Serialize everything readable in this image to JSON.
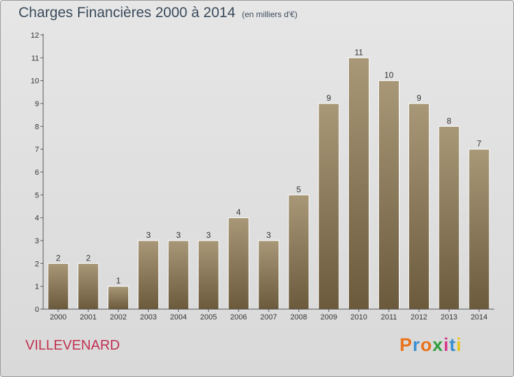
{
  "header": {
    "title": "Charges Financières 2000 à 2014",
    "subtitle": "(en milliers d'€)"
  },
  "footer": {
    "commune": "VILLEVENARD",
    "logo_text": "Proxiti",
    "logo_colors": [
      "#e8731c",
      "#3a8fd0",
      "#e8731c",
      "#2f9e3e",
      "#d63a8a",
      "#3a8fd0",
      "#e8c51c"
    ]
  },
  "colors": {
    "bar_top": "#a89878",
    "bar_bottom": "#6b5a3c",
    "axis": "#555555",
    "gridline": "#cccccc"
  },
  "chart_data": {
    "type": "bar",
    "categories": [
      "2000",
      "2001",
      "2002",
      "2003",
      "2004",
      "2005",
      "2006",
      "2007",
      "2008",
      "2009",
      "2010",
      "2011",
      "2012",
      "2013",
      "2014"
    ],
    "values": [
      2,
      2,
      1,
      3,
      3,
      3,
      4,
      3,
      5,
      9,
      11,
      10,
      9,
      8,
      7
    ],
    "data_labels": [
      "2",
      "2",
      "1",
      "3",
      "3",
      "3",
      "4",
      "3",
      "5",
      "9",
      "11",
      "10",
      "9",
      "8",
      "7"
    ],
    "y_ticks": [
      "0",
      "1",
      "2",
      "3",
      "4",
      "5",
      "6",
      "7",
      "8",
      "9",
      "10",
      "11",
      "12"
    ],
    "ylim": [
      0,
      12
    ],
    "grid": false,
    "legend": "none"
  }
}
